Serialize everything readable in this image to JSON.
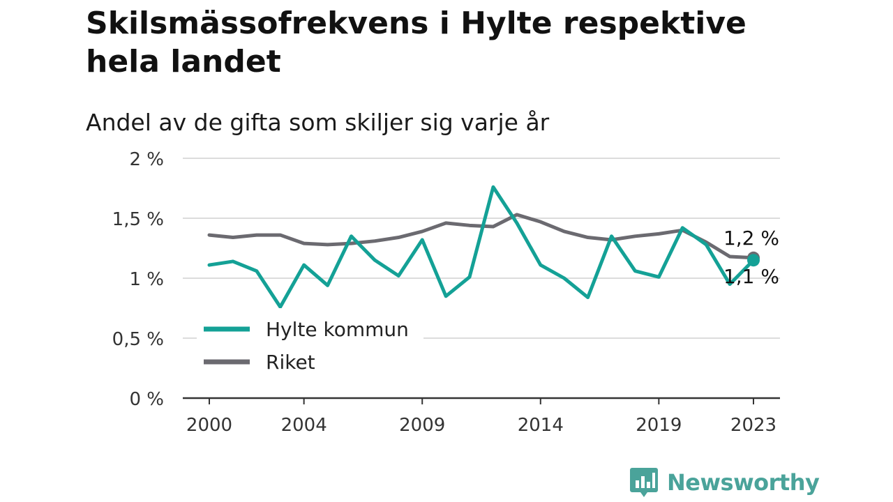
{
  "title": "Skilsmässofrekvens i Hylte respektive hela landet",
  "subtitle": "Andel av de gifta som skiljer sig varje år",
  "brand": {
    "name": "Newsworthy",
    "color": "#4aa39a"
  },
  "chart_data": {
    "type": "line",
    "title": "Skilsmässofrekvens i Hylte respektive hela landet",
    "subtitle": "Andel av de gifta som skiljer sig varje år",
    "xlabel": "",
    "ylabel": "",
    "x": [
      2000,
      2001,
      2002,
      2003,
      2004,
      2005,
      2006,
      2007,
      2008,
      2009,
      2010,
      2011,
      2012,
      2013,
      2014,
      2015,
      2016,
      2017,
      2018,
      2019,
      2020,
      2021,
      2022,
      2023
    ],
    "x_ticks": [
      {
        "value": 2000,
        "label": "2000"
      },
      {
        "value": 2004,
        "label": "2004"
      },
      {
        "value": 2009,
        "label": "2009"
      },
      {
        "value": 2014,
        "label": "2014"
      },
      {
        "value": 2019,
        "label": "2019"
      },
      {
        "value": 2023,
        "label": "2023"
      }
    ],
    "y_ticks": [
      {
        "value": 0,
        "label": "0 %"
      },
      {
        "value": 0.5,
        "label": "0,5 %"
      },
      {
        "value": 1,
        "label": "1 %"
      },
      {
        "value": 1.5,
        "label": "1,5 %"
      },
      {
        "value": 2,
        "label": "2 %"
      }
    ],
    "ylim": [
      0,
      2
    ],
    "xlim": [
      2000,
      2023
    ],
    "grid": true,
    "legend_position": "bottom-left",
    "series": [
      {
        "name": "Hylte kommun",
        "color": "#14a196",
        "values": [
          1.11,
          1.14,
          1.06,
          0.76,
          1.11,
          0.94,
          1.35,
          1.15,
          1.02,
          1.32,
          0.85,
          1.01,
          1.76,
          1.46,
          1.11,
          1.0,
          0.84,
          1.35,
          1.06,
          1.01,
          1.42,
          1.28,
          0.95,
          1.15
        ],
        "end_label": "1,1 %"
      },
      {
        "name": "Riket",
        "color": "#6b6a70",
        "values": [
          1.36,
          1.34,
          1.36,
          1.36,
          1.29,
          1.28,
          1.29,
          1.31,
          1.34,
          1.39,
          1.46,
          1.44,
          1.43,
          1.53,
          1.47,
          1.39,
          1.34,
          1.32,
          1.35,
          1.37,
          1.4,
          1.3,
          1.18,
          1.17
        ],
        "end_label": "1,2 %"
      }
    ]
  }
}
